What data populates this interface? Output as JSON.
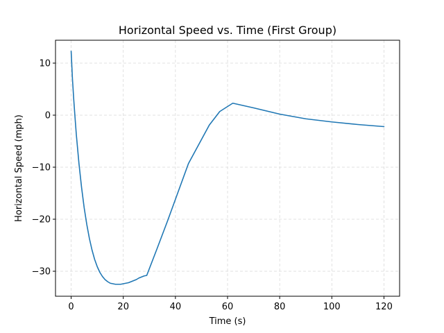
{
  "chart_data": {
    "type": "line",
    "title": "Horizontal Speed vs. Time (First Group)",
    "xlabel": "Time (s)",
    "ylabel": "Horizontal Speed (mph)",
    "xlim": [
      -6,
      126
    ],
    "ylim": [
      -34.8,
      14.4
    ],
    "xticks": [
      0,
      20,
      40,
      60,
      80,
      100,
      120
    ],
    "yticks": [
      10,
      0,
      -10,
      -20,
      -30
    ],
    "grid": true,
    "series": [
      {
        "color": "#1f77b4",
        "x": [
          0,
          0.5,
          1,
          1.5,
          2,
          3,
          4,
          5,
          6,
          7,
          8,
          9,
          10,
          11,
          12,
          13,
          14,
          15,
          16,
          17,
          18,
          19,
          20,
          21,
          22,
          23,
          24,
          25,
          26,
          27,
          28,
          29,
          33,
          37,
          41,
          45,
          49,
          53,
          57,
          62,
          70,
          80,
          90,
          100,
          110,
          120
        ],
        "y": [
          12.3,
          7.0,
          3.0,
          -0.5,
          -3.8,
          -9.3,
          -13.9,
          -17.8,
          -21.0,
          -23.7,
          -25.9,
          -27.7,
          -29.1,
          -30.2,
          -31.0,
          -31.6,
          -32.0,
          -32.3,
          -32.4,
          -32.5,
          -32.5,
          -32.5,
          -32.4,
          -32.3,
          -32.2,
          -32.0,
          -31.8,
          -31.6,
          -31.3,
          -31.1,
          -30.9,
          -30.8,
          -25.6,
          -20.3,
          -14.8,
          -9.3,
          -5.6,
          -1.9,
          0.7,
          2.3,
          1.4,
          0.2,
          -0.7,
          -1.3,
          -1.8,
          -2.2
        ]
      }
    ]
  }
}
